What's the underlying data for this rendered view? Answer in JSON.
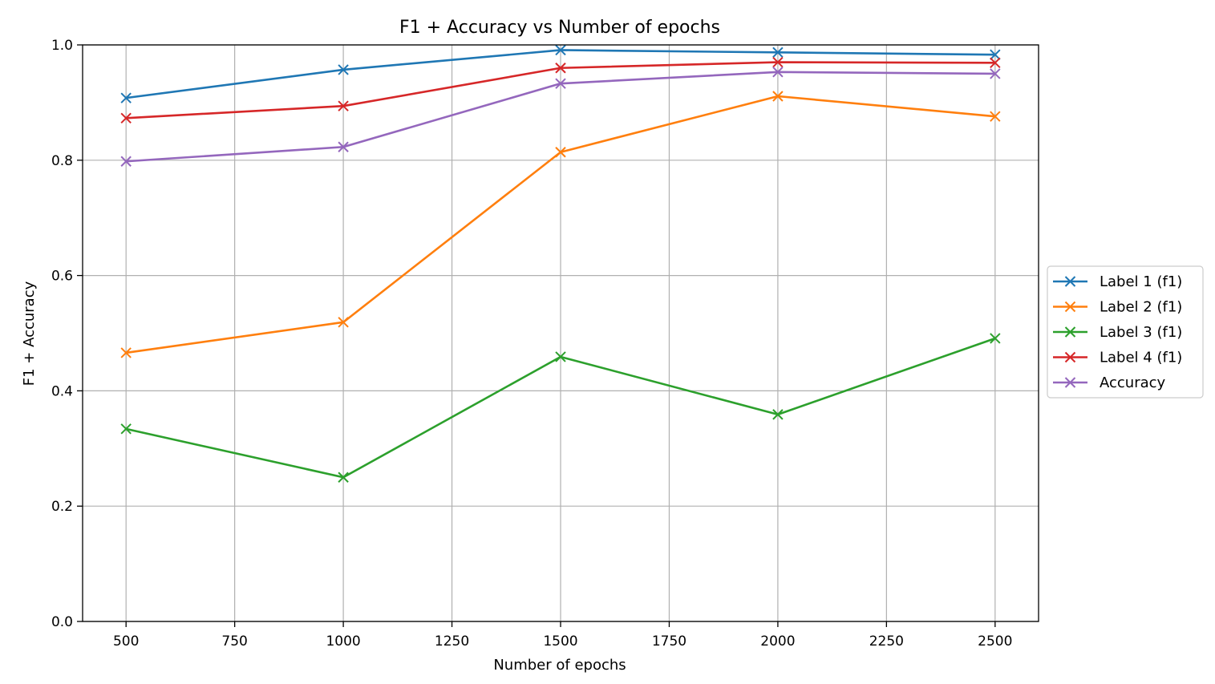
{
  "chart_data": {
    "type": "line",
    "title": "F1 + Accuracy vs Number of epochs",
    "xlabel": "Number of epochs",
    "ylabel": "F1 + Accuracy",
    "x": [
      500,
      1000,
      1500,
      2000,
      2500
    ],
    "xlim": [
      400,
      2600
    ],
    "ylim": [
      0.0,
      1.0
    ],
    "xticks": [
      500,
      750,
      1000,
      1250,
      1500,
      1750,
      2000,
      2250,
      2500
    ],
    "xtick_labels": [
      "500",
      "750",
      "1000",
      "1250",
      "1500",
      "1750",
      "2000",
      "2250",
      "2500"
    ],
    "yticks": [
      0.0,
      0.2,
      0.4,
      0.6,
      0.8,
      1.0
    ],
    "ytick_labels": [
      "0.0",
      "0.2",
      "0.4",
      "0.6",
      "0.8",
      "1.0"
    ],
    "grid": true,
    "legend_position": "center-right-outside",
    "marker": "x",
    "series": [
      {
        "name": "Label 1 (f1)",
        "color": "#1f77b4",
        "values": [
          0.908,
          0.957,
          0.991,
          0.987,
          0.983
        ]
      },
      {
        "name": "Label 2 (f1)",
        "color": "#ff7f0e",
        "values": [
          0.466,
          0.519,
          0.814,
          0.911,
          0.876
        ]
      },
      {
        "name": "Label 3 (f1)",
        "color": "#2ca02c",
        "values": [
          0.334,
          0.25,
          0.459,
          0.359,
          0.491
        ]
      },
      {
        "name": "Label 4 (f1)",
        "color": "#d62728",
        "values": [
          0.873,
          0.894,
          0.96,
          0.97,
          0.969
        ]
      },
      {
        "name": "Accuracy",
        "color": "#9467bd",
        "values": [
          0.798,
          0.823,
          0.933,
          0.953,
          0.95
        ]
      }
    ]
  }
}
